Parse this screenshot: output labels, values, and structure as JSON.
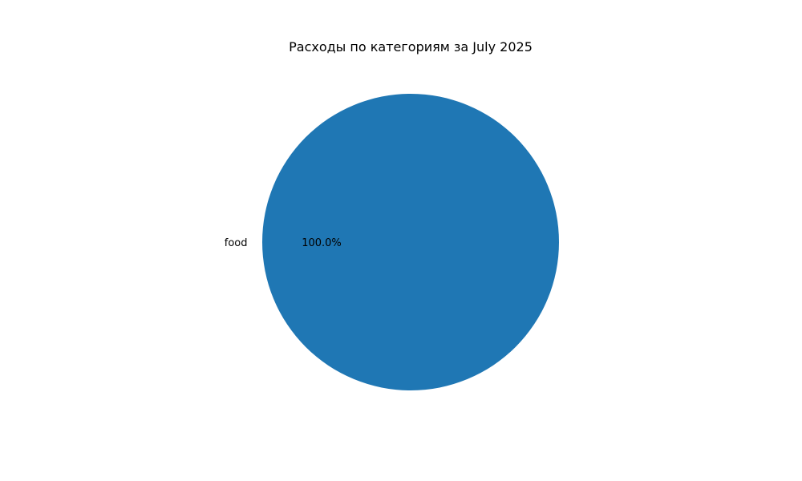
{
  "chart_data": {
    "type": "pie",
    "title": "Расходы по категориям за July 2025",
    "slices": [
      {
        "label": "food",
        "value": 100.0,
        "percent_label": "100.0%",
        "color": "#1f77b4"
      }
    ]
  }
}
